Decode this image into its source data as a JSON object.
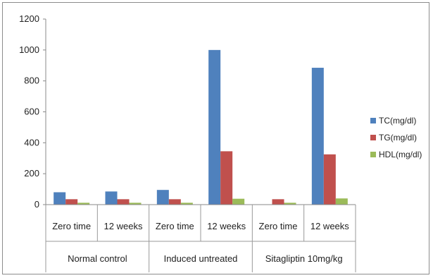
{
  "chart_data": {
    "type": "bar",
    "groups": [
      "Normal control",
      "Induced untreated",
      "Sitagliptin 10mg/kg"
    ],
    "categories": [
      "Zero time",
      "12 weeks",
      "Zero time",
      "12 weeks",
      "Zero time",
      "12 weeks"
    ],
    "series": [
      {
        "name": "TC(mg/dl)",
        "color": "#4f81bd",
        "values": [
          80,
          85,
          95,
          1000,
          0,
          885
        ]
      },
      {
        "name": "TG(mg/dl)",
        "color": "#c0504d",
        "values": [
          35,
          35,
          35,
          345,
          35,
          325
        ]
      },
      {
        "name": "HDL(mg/dl)",
        "color": "#9bbb59",
        "values": [
          12,
          12,
          12,
          38,
          12,
          40
        ]
      }
    ],
    "ylim": [
      0,
      1200
    ],
    "yticks": [
      "0",
      "200",
      "400",
      "600",
      "800",
      "1000",
      "1200"
    ],
    "legend_position": "right",
    "grid": false
  }
}
